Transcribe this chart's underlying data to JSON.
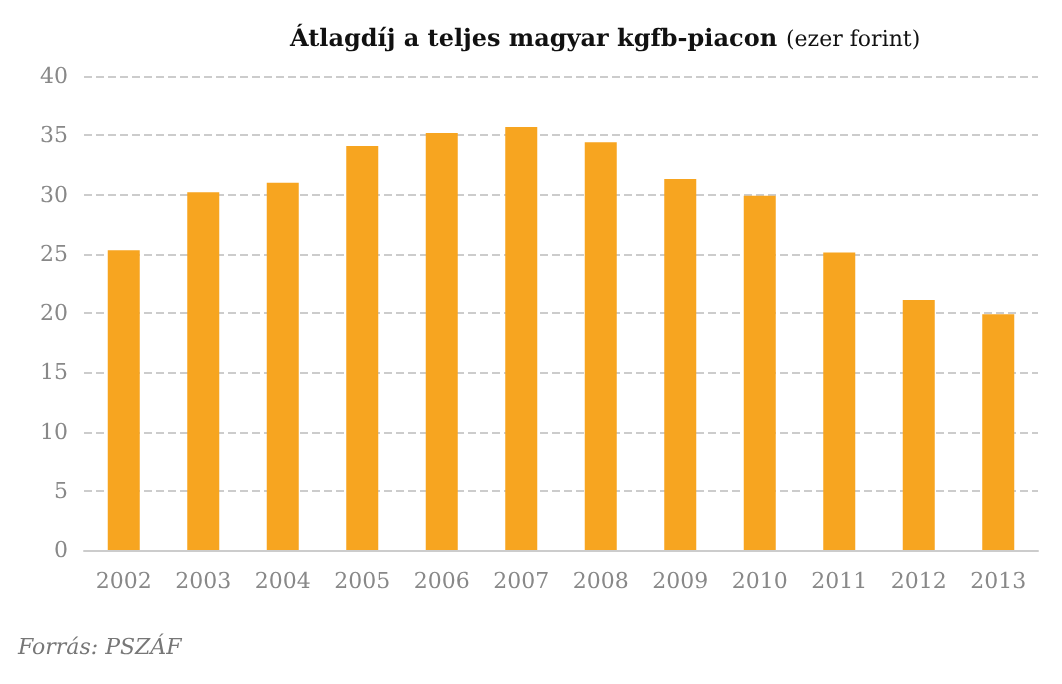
{
  "chart_data": {
    "type": "bar",
    "title": "Átlagdíj a teljes magyar kgfb-piacon",
    "subtitle": "(ezer forint)",
    "categories": [
      "2002",
      "2003",
      "2004",
      "2005",
      "2006",
      "2007",
      "2008",
      "2009",
      "2010",
      "2011",
      "2012",
      "2013"
    ],
    "values": [
      25.3,
      30.2,
      31.0,
      34.1,
      35.2,
      35.7,
      34.4,
      31.3,
      29.9,
      25.1,
      21.1,
      19.9
    ],
    "color": "#f7a520",
    "ylim": [
      0,
      40
    ],
    "yticks": [
      0,
      5,
      10,
      15,
      20,
      25,
      30,
      35,
      40
    ],
    "grid": "y",
    "annotations": [
      "Forrás: PSZÁF"
    ]
  }
}
